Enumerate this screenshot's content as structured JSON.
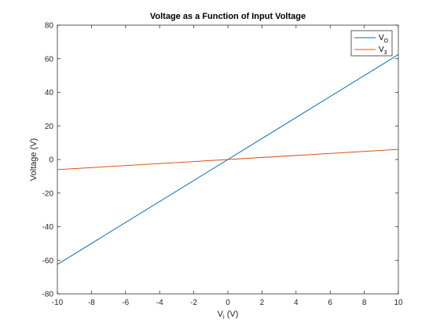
{
  "chart_data": {
    "type": "line",
    "title": "Voltage as a Function of Input Voltage",
    "xlabel": {
      "main": "V",
      "sub": "i",
      "unit": " (V)"
    },
    "ylabel": "Voltage (V)",
    "xlim": [
      -10,
      10
    ],
    "ylim": [
      -80,
      80
    ],
    "xticks": [
      -10,
      -8,
      -6,
      -4,
      -2,
      0,
      2,
      4,
      6,
      8,
      10
    ],
    "yticks": [
      -80,
      -60,
      -40,
      -20,
      0,
      20,
      40,
      60,
      80
    ],
    "grid": false,
    "legend_position": "top-right",
    "series": [
      {
        "name": "V",
        "name_sub": "O",
        "color": "#0072BD",
        "x": [
          -10,
          10
        ],
        "y": [
          -62.5,
          62.5
        ]
      },
      {
        "name": "V",
        "name_sub": "3",
        "color": "#D95319",
        "x": [
          -10,
          10
        ],
        "y": [
          -6,
          6
        ]
      }
    ]
  }
}
